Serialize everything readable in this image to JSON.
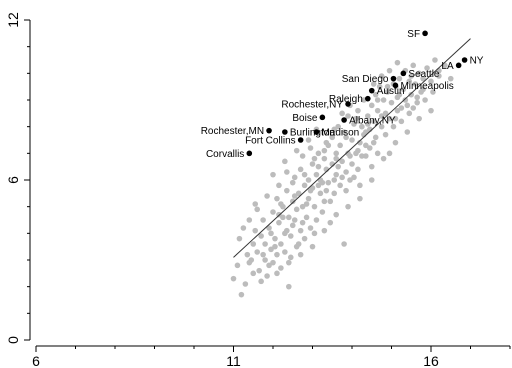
{
  "chart_data": {
    "type": "scatter",
    "title": "",
    "xlabel": "",
    "ylabel": "",
    "xlim": [
      6,
      18
    ],
    "ylim": [
      0,
      12
    ],
    "x_ticks": [
      6,
      11,
      16
    ],
    "x_tick_labels": [
      "6",
      "11",
      "16"
    ],
    "y_ticks": [
      0,
      6,
      12
    ],
    "y_tick_labels": [
      "0",
      "6",
      "12"
    ],
    "grid": false,
    "colors": {
      "background_points": "#bcbcbc",
      "labeled_points": "#000000",
      "fit_line": "#333333"
    },
    "fit_line": {
      "x": [
        11.0,
        17.0
      ],
      "y": [
        3.1,
        11.3
      ]
    },
    "labeled_points": [
      {
        "label": "SF",
        "x": 15.85,
        "y": 11.5,
        "label_side": "left"
      },
      {
        "label": "NY",
        "x": 16.85,
        "y": 10.5,
        "label_side": "right"
      },
      {
        "label": "LA",
        "x": 16.7,
        "y": 10.3,
        "label_side": "left"
      },
      {
        "label": "Seattle",
        "x": 15.3,
        "y": 10.0,
        "label_side": "right"
      },
      {
        "label": "San Diego",
        "x": 15.05,
        "y": 9.8,
        "label_side": "left"
      },
      {
        "label": "Minneapolis",
        "x": 15.1,
        "y": 9.55,
        "label_side": "right"
      },
      {
        "label": "Austin",
        "x": 14.5,
        "y": 9.35,
        "label_side": "right"
      },
      {
        "label": "Raleigh",
        "x": 14.4,
        "y": 9.05,
        "label_side": "left"
      },
      {
        "label": "Rochester,NY",
        "x": 13.9,
        "y": 8.85,
        "label_side": "left"
      },
      {
        "label": "Boise",
        "x": 13.25,
        "y": 8.35,
        "label_side": "left"
      },
      {
        "label": "Albany,NY",
        "x": 13.8,
        "y": 8.25,
        "label_side": "right"
      },
      {
        "label": "Rochester,MN",
        "x": 11.9,
        "y": 7.85,
        "label_side": "left"
      },
      {
        "label": "Burlington",
        "x": 12.3,
        "y": 7.8,
        "label_side": "right"
      },
      {
        "label": "Madison",
        "x": 13.1,
        "y": 7.8,
        "label_side": "right"
      },
      {
        "label": "Fort Collins",
        "x": 12.7,
        "y": 7.5,
        "label_side": "left"
      },
      {
        "label": "Corvallis",
        "x": 11.4,
        "y": 7.0,
        "label_side": "left"
      }
    ],
    "background_points": [
      [
        11.0,
        2.3
      ],
      [
        11.1,
        2.8
      ],
      [
        11.2,
        1.7
      ],
      [
        11.3,
        2.1
      ],
      [
        11.35,
        3.2
      ],
      [
        11.4,
        2.9
      ],
      [
        11.5,
        2.5
      ],
      [
        11.5,
        3.6
      ],
      [
        11.55,
        4.1
      ],
      [
        11.6,
        3.3
      ],
      [
        11.65,
        2.6
      ],
      [
        11.7,
        3.9
      ],
      [
        11.75,
        4.5
      ],
      [
        11.8,
        3.0
      ],
      [
        11.8,
        3.6
      ],
      [
        11.85,
        2.4
      ],
      [
        11.9,
        4.2
      ],
      [
        11.95,
        3.4
      ],
      [
        12.0,
        2.9
      ],
      [
        12.0,
        4.8
      ],
      [
        12.05,
        3.8
      ],
      [
        12.1,
        3.2
      ],
      [
        12.1,
        5.3
      ],
      [
        12.15,
        4.4
      ],
      [
        12.2,
        3.6
      ],
      [
        12.2,
        2.7
      ],
      [
        12.25,
        5.0
      ],
      [
        12.3,
        4.0
      ],
      [
        12.3,
        3.3
      ],
      [
        12.35,
        5.6
      ],
      [
        12.4,
        4.6
      ],
      [
        12.4,
        2.0
      ],
      [
        12.45,
        3.9
      ],
      [
        12.5,
        5.2
      ],
      [
        12.5,
        4.3
      ],
      [
        12.55,
        6.1
      ],
      [
        12.6,
        3.5
      ],
      [
        12.6,
        4.9
      ],
      [
        12.65,
        5.5
      ],
      [
        12.7,
        4.1
      ],
      [
        12.7,
        6.4
      ],
      [
        12.75,
        5.0
      ],
      [
        12.8,
        3.8
      ],
      [
        12.8,
        5.8
      ],
      [
        12.85,
        4.6
      ],
      [
        12.9,
        6.0
      ],
      [
        12.9,
        5.3
      ],
      [
        12.95,
        4.2
      ],
      [
        13.0,
        6.6
      ],
      [
        13.0,
        5.7
      ],
      [
        13.05,
        5.0
      ],
      [
        13.1,
        4.5
      ],
      [
        13.1,
        6.2
      ],
      [
        13.15,
        7.0
      ],
      [
        13.2,
        5.5
      ],
      [
        13.2,
        6.0
      ],
      [
        13.25,
        4.8
      ],
      [
        13.3,
        6.8
      ],
      [
        13.3,
        5.2
      ],
      [
        13.35,
        6.4
      ],
      [
        13.4,
        7.3
      ],
      [
        13.4,
        5.9
      ],
      [
        13.45,
        4.4
      ],
      [
        13.5,
        6.6
      ],
      [
        13.5,
        7.6
      ],
      [
        13.55,
        5.5
      ],
      [
        13.6,
        7.0
      ],
      [
        13.6,
        6.2
      ],
      [
        13.65,
        8.0
      ],
      [
        13.7,
        5.8
      ],
      [
        13.7,
        7.3
      ],
      [
        13.75,
        6.7
      ],
      [
        13.8,
        3.6
      ],
      [
        13.8,
        7.8
      ],
      [
        13.85,
        6.3
      ],
      [
        13.9,
        7.0
      ],
      [
        13.9,
        8.4
      ],
      [
        13.95,
        6.0
      ],
      [
        14.0,
        7.5
      ],
      [
        14.0,
        6.6
      ],
      [
        14.05,
        8.1
      ],
      [
        14.1,
        7.0
      ],
      [
        14.15,
        8.6
      ],
      [
        14.2,
        7.4
      ],
      [
        14.2,
        5.3
      ],
      [
        14.25,
        8.0
      ],
      [
        14.3,
        7.7
      ],
      [
        14.3,
        9.0
      ],
      [
        14.35,
        6.9
      ],
      [
        14.4,
        8.4
      ],
      [
        14.45,
        7.9
      ],
      [
        14.5,
        8.8
      ],
      [
        14.5,
        6.0
      ],
      [
        14.55,
        8.2
      ],
      [
        14.6,
        9.2
      ],
      [
        14.6,
        7.6
      ],
      [
        14.65,
        8.6
      ],
      [
        14.7,
        9.5
      ],
      [
        14.75,
        8.0
      ],
      [
        14.8,
        9.0
      ],
      [
        14.85,
        8.5
      ],
      [
        14.9,
        9.3
      ],
      [
        14.95,
        7.0
      ],
      [
        15.0,
        8.9
      ],
      [
        15.05,
        9.6
      ],
      [
        15.1,
        8.3
      ],
      [
        15.15,
        9.1
      ],
      [
        15.2,
        9.8
      ],
      [
        15.25,
        8.7
      ],
      [
        15.3,
        9.4
      ],
      [
        15.35,
        10.1
      ],
      [
        15.4,
        8.8
      ],
      [
        15.45,
        9.7
      ],
      [
        15.5,
        9.2
      ],
      [
        15.55,
        10.3
      ],
      [
        15.6,
        9.6
      ],
      [
        15.65,
        8.9
      ],
      [
        15.7,
        10.0
      ],
      [
        15.8,
        9.4
      ],
      [
        15.9,
        10.2
      ],
      [
        16.0,
        9.7
      ],
      [
        16.1,
        10.5
      ],
      [
        16.2,
        9.9
      ],
      [
        16.35,
        10.3
      ],
      [
        16.5,
        9.8
      ],
      [
        11.45,
        3.0
      ],
      [
        11.7,
        2.2
      ],
      [
        11.9,
        2.8
      ],
      [
        12.05,
        3.5
      ],
      [
        12.25,
        4.6
      ],
      [
        12.45,
        3.1
      ],
      [
        12.65,
        3.6
      ],
      [
        12.85,
        5.1
      ],
      [
        13.05,
        4.0
      ],
      [
        13.25,
        5.9
      ],
      [
        13.45,
        5.2
      ],
      [
        13.65,
        6.5
      ],
      [
        13.85,
        5.6
      ],
      [
        14.05,
        6.1
      ],
      [
        14.25,
        6.9
      ],
      [
        14.45,
        7.2
      ],
      [
        14.65,
        7.0
      ],
      [
        14.85,
        7.7
      ],
      [
        15.05,
        8.0
      ],
      [
        15.25,
        8.2
      ],
      [
        15.45,
        8.5
      ],
      [
        15.65,
        9.1
      ],
      [
        15.85,
        9.0
      ],
      [
        16.05,
        9.3
      ],
      [
        12.15,
        5.8
      ],
      [
        12.35,
        6.3
      ],
      [
        12.55,
        5.4
      ],
      [
        12.75,
        6.9
      ],
      [
        12.95,
        7.2
      ],
      [
        13.15,
        6.5
      ],
      [
        13.35,
        7.4
      ],
      [
        13.55,
        7.9
      ],
      [
        13.75,
        8.5
      ],
      [
        13.95,
        8.8
      ],
      [
        14.15,
        7.1
      ],
      [
        14.35,
        7.8
      ],
      [
        14.55,
        9.6
      ],
      [
        14.75,
        9.9
      ],
      [
        14.95,
        10.1
      ],
      [
        15.15,
        10.4
      ],
      [
        11.25,
        4.2
      ],
      [
        11.6,
        4.9
      ],
      [
        11.85,
        5.4
      ],
      [
        12.0,
        6.2
      ],
      [
        12.3,
        6.7
      ],
      [
        12.6,
        7.1
      ],
      [
        12.9,
        7.5
      ],
      [
        13.1,
        7.9
      ],
      [
        12.1,
        2.5
      ],
      [
        12.4,
        2.9
      ],
      [
        12.7,
        3.2
      ],
      [
        13.0,
        3.5
      ],
      [
        13.3,
        4.1
      ],
      [
        13.6,
        4.7
      ],
      [
        13.9,
        5.0
      ],
      [
        14.2,
        5.8
      ],
      [
        14.5,
        6.5
      ],
      [
        14.8,
        6.8
      ],
      [
        15.1,
        7.4
      ],
      [
        15.4,
        7.8
      ],
      [
        15.7,
        8.3
      ],
      [
        16.0,
        8.6
      ],
      [
        11.15,
        3.8
      ],
      [
        11.4,
        4.5
      ],
      [
        11.55,
        5.1
      ],
      [
        11.75,
        3.2
      ],
      [
        11.95,
        4.0
      ],
      [
        12.15,
        4.7
      ],
      [
        12.35,
        4.1
      ],
      [
        12.55,
        4.5
      ],
      [
        12.75,
        4.4
      ],
      [
        12.95,
        5.6
      ],
      [
        13.15,
        5.8
      ],
      [
        13.35,
        5.6
      ],
      [
        13.55,
        6.0
      ],
      [
        13.75,
        6.1
      ],
      [
        13.95,
        6.9
      ],
      [
        14.15,
        6.4
      ],
      [
        14.35,
        7.3
      ],
      [
        14.55,
        7.4
      ],
      [
        14.75,
        8.4
      ],
      [
        14.95,
        8.3
      ],
      [
        15.15,
        8.6
      ],
      [
        15.35,
        9.0
      ],
      [
        15.55,
        8.7
      ],
      [
        15.75,
        9.3
      ],
      [
        12.2,
        5.1
      ],
      [
        12.5,
        5.9
      ],
      [
        12.8,
        6.2
      ],
      [
        13.05,
        6.8
      ],
      [
        13.3,
        7.1
      ],
      [
        13.6,
        6.8
      ],
      [
        13.85,
        7.6
      ],
      [
        14.1,
        8.3
      ],
      [
        14.4,
        8.1
      ],
      [
        14.65,
        9.0
      ],
      [
        14.9,
        9.5
      ],
      [
        15.2,
        9.2
      ],
      [
        15.5,
        9.9
      ],
      [
        15.8,
        9.8
      ],
      [
        16.2,
        10.1
      ]
    ]
  }
}
